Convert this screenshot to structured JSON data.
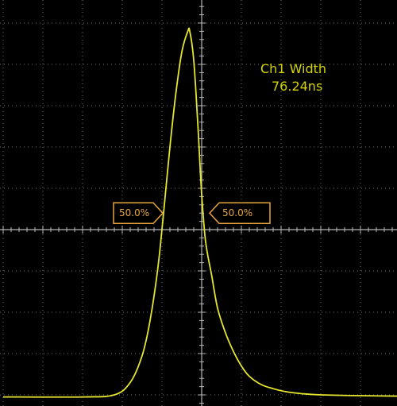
{
  "measurement": {
    "name": "Ch1 Width",
    "value": "76.24ns"
  },
  "markers": {
    "left_label": "50.0%",
    "right_label": "50.0%"
  },
  "colors": {
    "trace": "#e6e62e",
    "grid": "#6f6f6f",
    "crosshair": "#b8b8b8",
    "marker": "#e6a53a",
    "measurement_text": "#d4d400",
    "background": "#000000"
  },
  "chart_data": {
    "type": "line",
    "title": "",
    "xlabel": "",
    "ylabel": "",
    "divisions": {
      "x": 10,
      "y": 10
    },
    "xlim": [
      -5,
      5
    ],
    "ylim": [
      -5,
      5
    ],
    "series": [
      {
        "x": [
          -5.0,
          -3.0,
          -2.2,
          -1.8,
          -1.5,
          -1.3,
          -1.1,
          -0.95,
          -0.8,
          -0.65,
          -0.5,
          -0.35,
          -0.3,
          -0.2,
          -0.1,
          0.0,
          0.1,
          0.25,
          0.4,
          0.6,
          0.8,
          1.0,
          1.2,
          1.5,
          1.8,
          2.1,
          2.5,
          3.0,
          4.0,
          5.0
        ],
        "y": [
          -4.05,
          -4.05,
          -4.0,
          -3.7,
          -3.05,
          -2.2,
          -0.9,
          0.5,
          2.0,
          3.3,
          4.3,
          4.8,
          4.8,
          4.1,
          2.6,
          0.85,
          -0.3,
          -1.1,
          -1.9,
          -2.5,
          -2.95,
          -3.3,
          -3.55,
          -3.75,
          -3.85,
          -3.92,
          -3.97,
          -4.0,
          -4.02,
          -4.03
        ]
      }
    ],
    "levels": [
      {
        "y": 0.4,
        "x": -0.98,
        "label": "50.0%"
      },
      {
        "y": 0.4,
        "x": 0.2,
        "label": "50.0%"
      }
    ]
  }
}
